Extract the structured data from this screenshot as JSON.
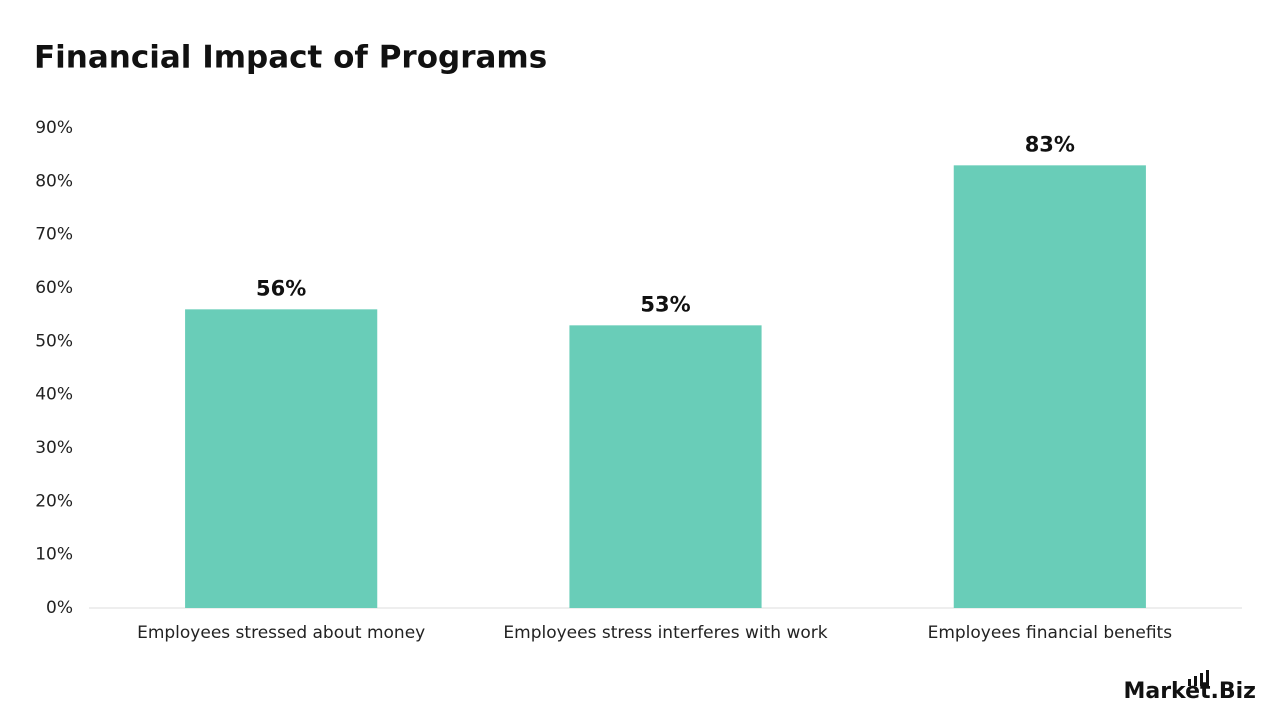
{
  "chart_data": {
    "type": "bar",
    "title": "Financial Impact of Programs",
    "categories": [
      "Employees stressed about money",
      "Employees stress interferes with work",
      "Employees financial benefits"
    ],
    "values": [
      56,
      53,
      83
    ],
    "value_labels": [
      "56%",
      "53%",
      "83%"
    ],
    "color": "#69cdb8",
    "ylim": [
      0,
      90
    ],
    "yticks": [
      {
        "value": 0,
        "label": "0%"
      },
      {
        "value": 10,
        "label": "10%"
      },
      {
        "value": 20,
        "label": "20%"
      },
      {
        "value": 30,
        "label": "30%"
      },
      {
        "value": 40,
        "label": "40%"
      },
      {
        "value": 50,
        "label": "50%"
      },
      {
        "value": 60,
        "label": "60%"
      },
      {
        "value": 70,
        "label": "70%"
      },
      {
        "value": 80,
        "label": "80%"
      },
      {
        "value": 90,
        "label": "90%"
      }
    ],
    "grid": false
  },
  "brand": "Market.Biz"
}
